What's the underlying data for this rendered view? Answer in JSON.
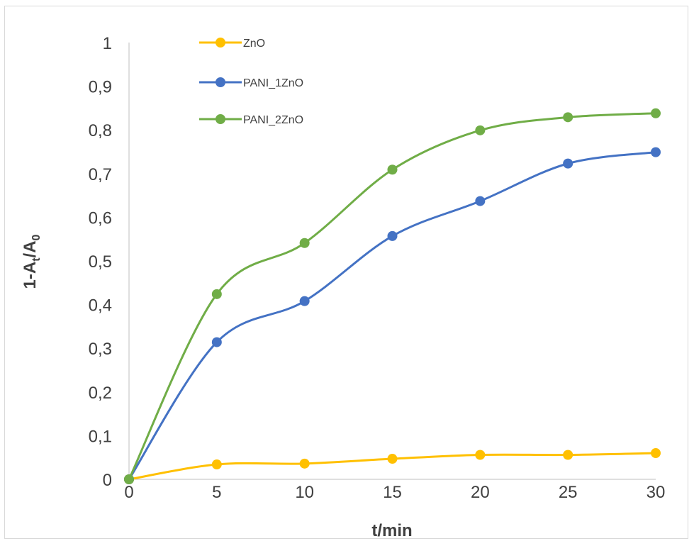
{
  "chart_data": {
    "type": "line",
    "x": [
      0,
      5,
      10,
      15,
      20,
      25,
      30
    ],
    "xlabel": "t/min",
    "ylabel": {
      "main": "1-A",
      "sub1": "t",
      "mid": "/A",
      "sub2": "0"
    },
    "xlim": [
      0,
      30
    ],
    "ylim": [
      0,
      1
    ],
    "xticks": [
      "0",
      "5",
      "10",
      "15",
      "20",
      "25",
      "30"
    ],
    "yticks": [
      "0",
      "0,1",
      "0,2",
      "0,3",
      "0,4",
      "0,5",
      "0,6",
      "0,7",
      "0,8",
      "0,9",
      "1"
    ],
    "grid": false,
    "legend_position": "top-left",
    "smooth": true,
    "series": [
      {
        "name": "ZnO",
        "color": "#FFC000",
        "values": [
          0,
          0.034,
          0.036,
          0.047,
          0.056,
          0.056,
          0.06
        ]
      },
      {
        "name": "PANI_1ZnO",
        "color": "#4472C4",
        "values": [
          0,
          0.314,
          0.408,
          0.557,
          0.637,
          0.723,
          0.749
        ]
      },
      {
        "name": "PANI_2ZnO",
        "color": "#70AD47",
        "values": [
          0,
          0.424,
          0.541,
          0.709,
          0.799,
          0.829,
          0.838
        ]
      }
    ]
  }
}
